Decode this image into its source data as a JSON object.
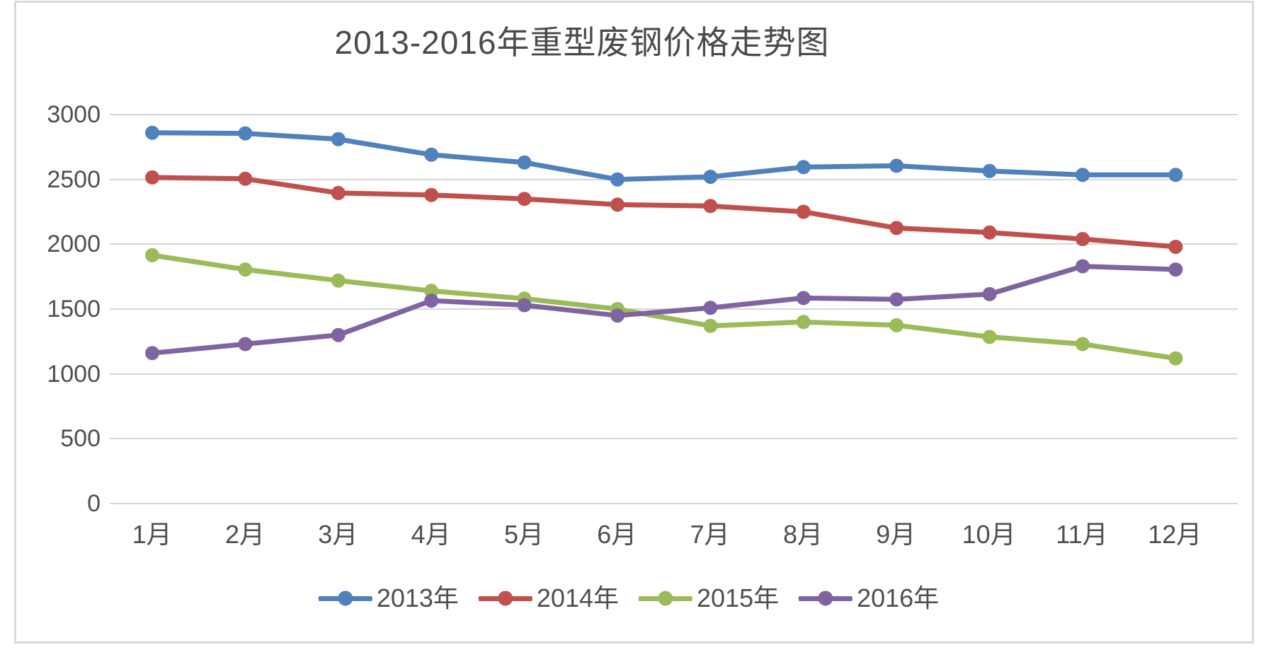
{
  "window": {
    "background_color": "#FFFFFF",
    "frame_border_color": "#D9D9D9"
  },
  "chart_data": {
    "type": "line",
    "title": "2013-2016年重型废钢价格走势图",
    "xlabel": "",
    "ylabel": "",
    "ylim": [
      0,
      3000
    ],
    "y_tick_step": 500,
    "grid": "horizontal",
    "gridline_color": "#D6D6D6",
    "text_color": "#4F4F4F",
    "marker": "circle",
    "legend_position": "bottom",
    "y_ticks": [
      "3000",
      "2500",
      "2000",
      "1500",
      "1000",
      "500",
      "0"
    ],
    "categories": [
      "1月",
      "2月",
      "3月",
      "4月",
      "5月",
      "6月",
      "7月",
      "8月",
      "9月",
      "10月",
      "11月",
      "12月"
    ],
    "series": [
      {
        "name": "2013年",
        "color": "#4F81BD",
        "values": [
          2860,
          2855,
          2810,
          2690,
          2630,
          2500,
          2520,
          2595,
          2605,
          2565,
          2535,
          2535
        ]
      },
      {
        "name": "2014年",
        "color": "#C0504D",
        "values": [
          2515,
          2505,
          2395,
          2380,
          2350,
          2305,
          2295,
          2250,
          2125,
          2090,
          2040,
          1980
        ]
      },
      {
        "name": "2015年",
        "color": "#9BBB59",
        "values": [
          1915,
          1805,
          1720,
          1640,
          1580,
          1500,
          1370,
          1400,
          1375,
          1285,
          1230,
          1120
        ]
      },
      {
        "name": "2016年",
        "color": "#8064A2",
        "values": [
          1160,
          1230,
          1300,
          1565,
          1530,
          1450,
          1510,
          1585,
          1575,
          1615,
          1830,
          1805
        ]
      }
    ]
  }
}
